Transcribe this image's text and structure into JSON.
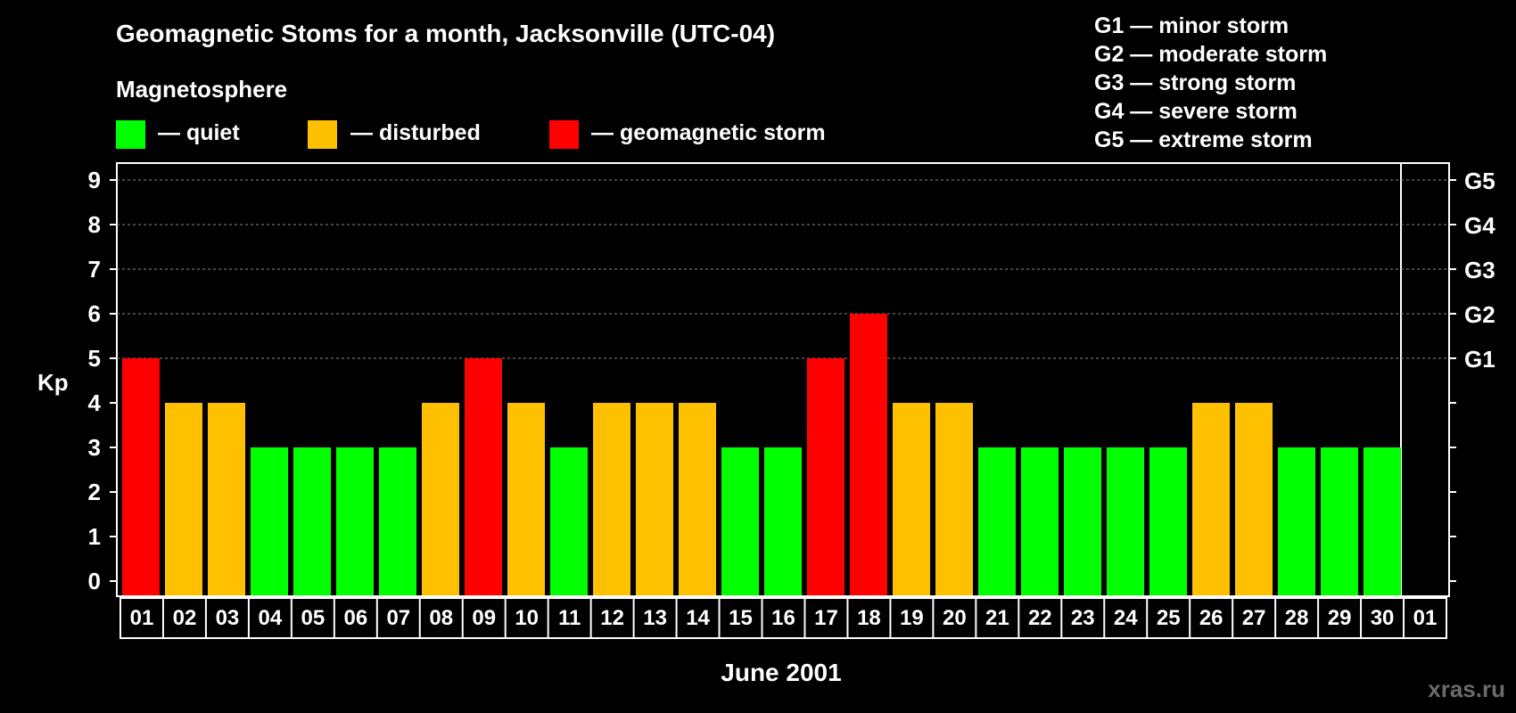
{
  "title": "Geomagnetic Stoms for a month, Jacksonville (UTC-04)",
  "magnetosphere_label": "Magnetosphere",
  "legend": [
    {
      "color": "#00ff00",
      "label": "— quiet"
    },
    {
      "color": "#ffc000",
      "label": "— disturbed"
    },
    {
      "color": "#ff0000",
      "label": "— geomagnetic storm"
    }
  ],
  "storm_scale": [
    "G1 — minor storm",
    "G2 — moderate storm",
    "G3 — strong storm",
    "G4 — severe storm",
    "G5 — extreme storm"
  ],
  "watermark": "xras.ru",
  "colors": {
    "quiet": "#00ff00",
    "disturbed": "#ffc000",
    "storm": "#ff0000",
    "grid": "#8a8a8a",
    "axis": "#ffffff"
  },
  "chart_data": {
    "type": "bar",
    "title": "Geomagnetic Stoms for a month, Jacksonville (UTC-04)",
    "xlabel": "June 2001",
    "ylabel": "Kp",
    "ylim": [
      0,
      9
    ],
    "yticks": [
      "0",
      "1",
      "2",
      "3",
      "4",
      "5",
      "6",
      "7",
      "8",
      "9"
    ],
    "right_axis_labels": [
      {
        "kp": 5,
        "label": "G1"
      },
      {
        "kp": 6,
        "label": "G2"
      },
      {
        "kp": 7,
        "label": "G3"
      },
      {
        "kp": 8,
        "label": "G4"
      },
      {
        "kp": 9,
        "label": "G5"
      }
    ],
    "categories": [
      "01",
      "02",
      "03",
      "04",
      "05",
      "06",
      "07",
      "08",
      "09",
      "10",
      "11",
      "12",
      "13",
      "14",
      "15",
      "16",
      "17",
      "18",
      "19",
      "20",
      "21",
      "22",
      "23",
      "24",
      "25",
      "26",
      "27",
      "28",
      "29",
      "30",
      "01"
    ],
    "values": [
      5,
      4,
      4,
      3,
      3,
      3,
      3,
      4,
      5,
      4,
      3,
      4,
      4,
      4,
      3,
      3,
      5,
      6,
      4,
      4,
      3,
      3,
      3,
      3,
      3,
      4,
      4,
      3,
      3,
      3,
      null
    ],
    "grid": true
  }
}
